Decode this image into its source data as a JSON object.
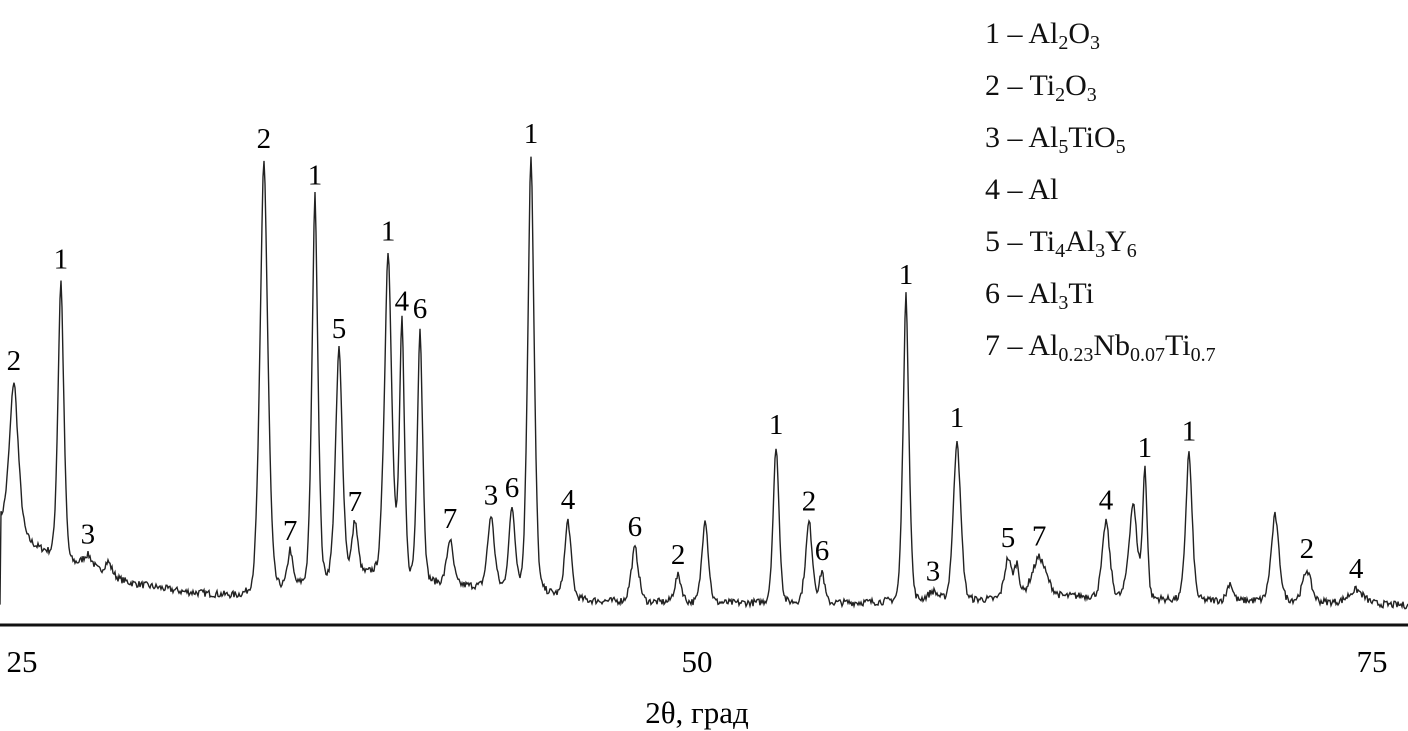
{
  "chart_data": {
    "type": "line",
    "title": "",
    "xlabel": "2θ, град",
    "ylabel": "",
    "xlim": [
      24.2,
      76.4
    ],
    "ylim": [
      0,
      105
    ],
    "xticks": [
      "25",
      "50",
      "75"
    ],
    "xtick_values": [
      25,
      50,
      75
    ],
    "grid": false,
    "legend_placement": "top-right",
    "legend": [
      {
        "id": "1",
        "dash": "–",
        "formula": [
          {
            "t": "Al"
          },
          {
            "s": "2"
          },
          {
            "t": "O"
          },
          {
            "s": "3"
          }
        ]
      },
      {
        "id": "2",
        "dash": "–",
        "formula": [
          {
            "t": "Ti"
          },
          {
            "s": "2"
          },
          {
            "t": "O"
          },
          {
            "s": "3"
          }
        ]
      },
      {
        "id": "3",
        "dash": "–",
        "formula": [
          {
            "t": "Al"
          },
          {
            "s": "5"
          },
          {
            "t": "TiO"
          },
          {
            "s": "5"
          }
        ]
      },
      {
        "id": "4",
        "dash": "–",
        "formula": [
          {
            "t": "Al"
          }
        ]
      },
      {
        "id": "5",
        "dash": "–",
        "formula": [
          {
            "t": "Ti"
          },
          {
            "s": "4"
          },
          {
            "t": "Al"
          },
          {
            "s": "3"
          },
          {
            "t": "Y"
          },
          {
            "s": "6"
          }
        ]
      },
      {
        "id": "6",
        "dash": "–",
        "formula": [
          {
            "t": "Al"
          },
          {
            "s": "3"
          },
          {
            "t": "Ti"
          }
        ]
      },
      {
        "id": "7",
        "dash": "–",
        "formula": [
          {
            "t": "Al"
          },
          {
            "s": "0.23"
          },
          {
            "t": "Nb"
          },
          {
            "s": "0.07"
          },
          {
            "t": "Ti"
          },
          {
            "s": "0.7"
          }
        ]
      }
    ],
    "background": [
      [
        24.2,
        20
      ],
      [
        25.5,
        14
      ],
      [
        26.5,
        11
      ],
      [
        27.5,
        9
      ],
      [
        29,
        6
      ],
      [
        31,
        4
      ],
      [
        33,
        3
      ],
      [
        36,
        6
      ],
      [
        38,
        8
      ],
      [
        40,
        6
      ],
      [
        42,
        5
      ],
      [
        44,
        4
      ],
      [
        46,
        2
      ],
      [
        50,
        1.5
      ],
      [
        55,
        1.5
      ],
      [
        60,
        2
      ],
      [
        64,
        3
      ],
      [
        68,
        2
      ],
      [
        72,
        2
      ],
      [
        76.4,
        1
      ]
    ],
    "peaks": [
      {
        "two_theta": 24.7,
        "intensity": 33,
        "width": 0.18,
        "label": "2"
      },
      {
        "two_theta": 26.44,
        "intensity": 62,
        "width": 0.12,
        "label": "1"
      },
      {
        "two_theta": 27.44,
        "intensity": 3,
        "width": 0.2,
        "label": "3"
      },
      {
        "two_theta": 28.19,
        "intensity": 3,
        "width": 0.15,
        "label": ""
      },
      {
        "two_theta": 33.96,
        "intensity": 96,
        "width": 0.16,
        "label": "2"
      },
      {
        "two_theta": 34.93,
        "intensity": 8,
        "width": 0.1,
        "label": "7"
      },
      {
        "two_theta": 35.85,
        "intensity": 86,
        "width": 0.12,
        "label": "1"
      },
      {
        "two_theta": 36.74,
        "intensity": 51,
        "width": 0.14,
        "label": "5"
      },
      {
        "two_theta": 37.33,
        "intensity": 12,
        "width": 0.12,
        "label": "7"
      },
      {
        "two_theta": 38.56,
        "intensity": 72,
        "width": 0.15,
        "label": "1"
      },
      {
        "two_theta": 39.07,
        "intensity": 57,
        "width": 0.1,
        "label": "4"
      },
      {
        "two_theta": 39.74,
        "intensity": 56,
        "width": 0.11,
        "label": "6"
      },
      {
        "two_theta": 40.85,
        "intensity": 10,
        "width": 0.13,
        "label": "7"
      },
      {
        "two_theta": 42.37,
        "intensity": 16,
        "width": 0.14,
        "label": "3"
      },
      {
        "two_theta": 43.15,
        "intensity": 18,
        "width": 0.13,
        "label": "6"
      },
      {
        "two_theta": 43.85,
        "intensity": 97,
        "width": 0.13,
        "label": "1"
      },
      {
        "two_theta": 45.22,
        "intensity": 17,
        "width": 0.13,
        "label": "4"
      },
      {
        "two_theta": 47.7,
        "intensity": 12,
        "width": 0.15,
        "label": "6"
      },
      {
        "two_theta": 49.3,
        "intensity": 6,
        "width": 0.14,
        "label": "2"
      },
      {
        "two_theta": 50.3,
        "intensity": 19,
        "width": 0.13,
        "label": ""
      },
      {
        "two_theta": 52.93,
        "intensity": 35,
        "width": 0.12,
        "label": "1"
      },
      {
        "two_theta": 54.15,
        "intensity": 18,
        "width": 0.14,
        "label": "2"
      },
      {
        "two_theta": 54.63,
        "intensity": 7,
        "width": 0.1,
        "label": "6"
      },
      {
        "two_theta": 57.74,
        "intensity": 68,
        "width": 0.12,
        "label": "1"
      },
      {
        "two_theta": 58.74,
        "intensity": 2,
        "width": 0.2,
        "label": "3"
      },
      {
        "two_theta": 59.63,
        "intensity": 36,
        "width": 0.15,
        "label": "1"
      },
      {
        "two_theta": 61.52,
        "intensity": 9,
        "width": 0.15,
        "label": "5"
      },
      {
        "two_theta": 61.85,
        "intensity": 7,
        "width": 0.1,
        "label": ""
      },
      {
        "two_theta": 62.67,
        "intensity": 9,
        "width": 0.3,
        "label": "7"
      },
      {
        "two_theta": 65.15,
        "intensity": 17,
        "width": 0.15,
        "label": "4"
      },
      {
        "two_theta": 66.15,
        "intensity": 21,
        "width": 0.17,
        "label": ""
      },
      {
        "two_theta": 66.59,
        "intensity": 29,
        "width": 0.09,
        "label": "1"
      },
      {
        "two_theta": 68.22,
        "intensity": 33,
        "width": 0.13,
        "label": "1"
      },
      {
        "two_theta": 69.74,
        "intensity": 4,
        "width": 0.12,
        "label": ""
      },
      {
        "two_theta": 71.41,
        "intensity": 19,
        "width": 0.16,
        "label": ""
      },
      {
        "two_theta": 72.59,
        "intensity": 7,
        "width": 0.17,
        "label": "2"
      },
      {
        "two_theta": 74.41,
        "intensity": 3,
        "width": 0.3,
        "label": "4"
      }
    ]
  }
}
